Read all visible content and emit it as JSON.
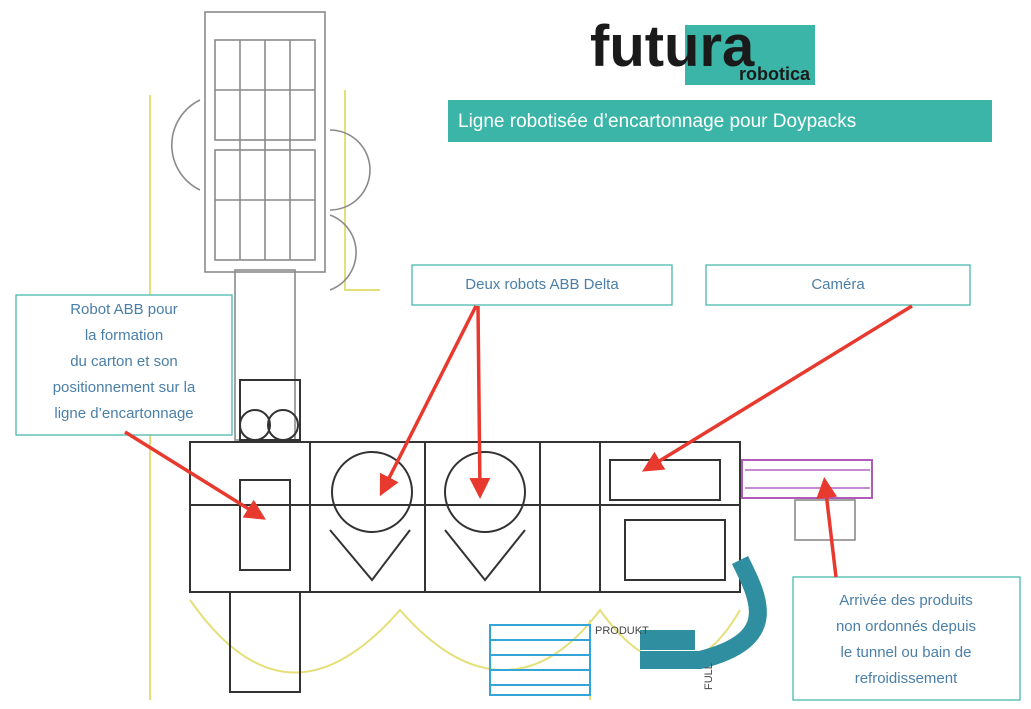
{
  "logo": {
    "name": "futura",
    "sub": "robotica"
  },
  "banner": {
    "title": "Ligne robotisée d’encartonnage pour Doypacks"
  },
  "callouts": [
    {
      "lines": [
        "Deux robots ABB Delta"
      ]
    },
    {
      "lines": [
        "Caméra"
      ]
    },
    {
      "lines": [
        "Robot ABB pour",
        "la formation",
        "du carton et son",
        "positionnement sur la",
        "ligne d’encartonnage"
      ]
    },
    {
      "lines": [
        "Arrivée des produits",
        "non ordonnés depuis",
        "le tunnel ou bain de",
        "refroidissement"
      ]
    }
  ],
  "drawing": {
    "labels": [
      "PRODUKT",
      "FULL"
    ]
  }
}
